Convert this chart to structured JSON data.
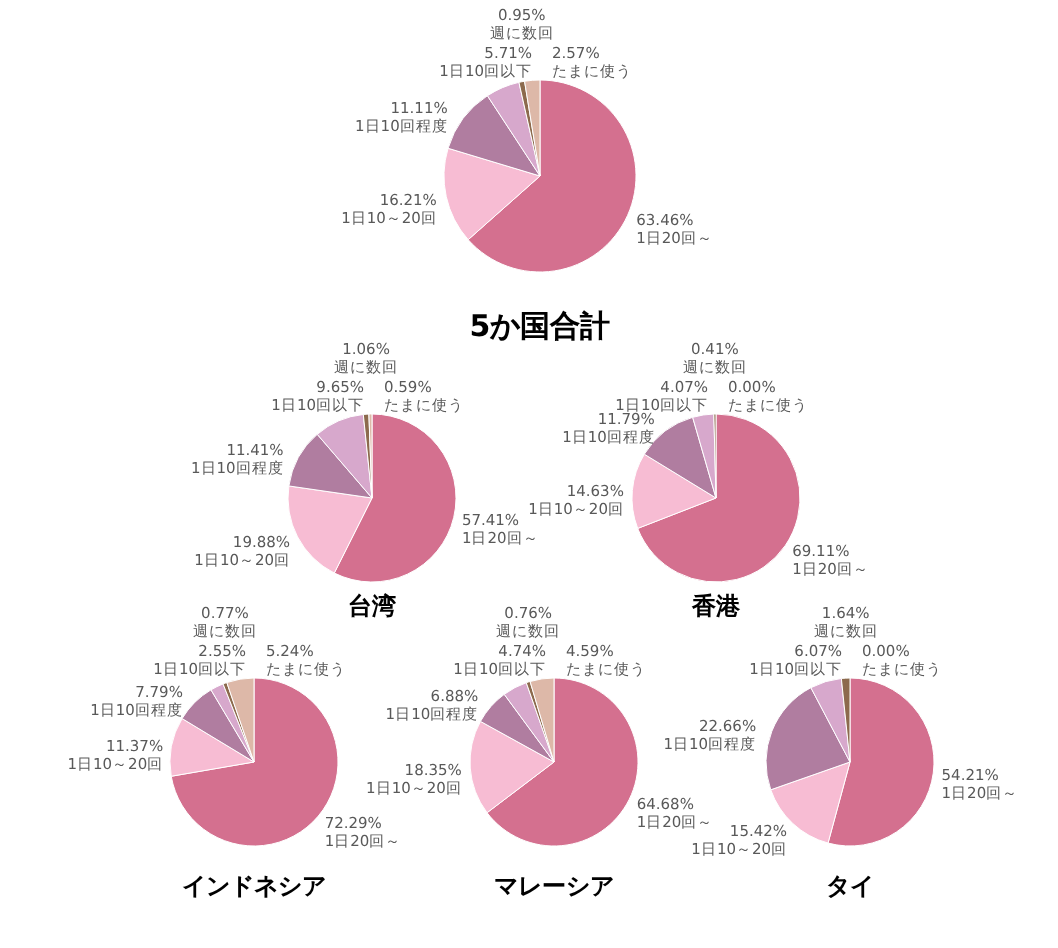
{
  "chart_data": [
    {
      "type": "pie",
      "title": "5か国合計",
      "categories": [
        "1日20回～",
        "1日10～20回",
        "1日10回程度",
        "1日10回以下",
        "週に数回",
        "たまに使う"
      ],
      "values": [
        63.46,
        16.21,
        11.11,
        5.71,
        0.95,
        2.57
      ],
      "value_labels": [
        "63.46%",
        "16.21%",
        "11.11%",
        "5.71%",
        "0.95%",
        "2.57%"
      ],
      "colors": [
        "#d4708f",
        "#f7bcd3",
        "#b07da0",
        "#d7a8cc",
        "#8c6a4d",
        "#ddb8a8"
      ]
    },
    {
      "type": "pie",
      "title": "台湾",
      "categories": [
        "1日20回～",
        "1日10～20回",
        "1日10回程度",
        "1日10回以下",
        "週に数回",
        "たまに使う"
      ],
      "values": [
        57.41,
        19.88,
        11.41,
        9.65,
        1.06,
        0.59
      ],
      "value_labels": [
        "57.41%",
        "19.88%",
        "11.41%",
        "9.65%",
        "1.06%",
        "0.59%"
      ],
      "colors": [
        "#d4708f",
        "#f7bcd3",
        "#b07da0",
        "#d7a8cc",
        "#8c6a4d",
        "#ddb8a8"
      ]
    },
    {
      "type": "pie",
      "title": "香港",
      "categories": [
        "1日20回～",
        "1日10～20回",
        "1日10回程度",
        "1日10回以下",
        "週に数回",
        "たまに使う"
      ],
      "values": [
        69.11,
        14.63,
        11.79,
        4.07,
        0.41,
        0.0
      ],
      "value_labels": [
        "69.11%",
        "14.63%",
        "11.79%",
        "4.07%",
        "0.41%",
        "0.00%"
      ],
      "colors": [
        "#d4708f",
        "#f7bcd3",
        "#b07da0",
        "#d7a8cc",
        "#8c6a4d",
        "#ddb8a8"
      ]
    },
    {
      "type": "pie",
      "title": "インドネシア",
      "categories": [
        "1日20回～",
        "1日10～20回",
        "1日10回程度",
        "1日10回以下",
        "週に数回",
        "たまに使う"
      ],
      "values": [
        72.29,
        11.37,
        7.79,
        2.55,
        0.77,
        5.24
      ],
      "value_labels": [
        "72.29%",
        "11.37%",
        "7.79%",
        "2.55%",
        "0.77%",
        "5.24%"
      ],
      "colors": [
        "#d4708f",
        "#f7bcd3",
        "#b07da0",
        "#d7a8cc",
        "#8c6a4d",
        "#ddb8a8"
      ]
    },
    {
      "type": "pie",
      "title": "マレーシア",
      "categories": [
        "1日20回～",
        "1日10～20回",
        "1日10回程度",
        "1日10回以下",
        "週に数回",
        "たまに使う"
      ],
      "values": [
        64.68,
        18.35,
        6.88,
        4.74,
        0.76,
        4.59
      ],
      "value_labels": [
        "64.68%",
        "18.35%",
        "6.88%",
        "4.74%",
        "0.76%",
        "4.59%"
      ],
      "colors": [
        "#d4708f",
        "#f7bcd3",
        "#b07da0",
        "#d7a8cc",
        "#8c6a4d",
        "#ddb8a8"
      ]
    },
    {
      "type": "pie",
      "title": "タイ",
      "categories": [
        "1日20回～",
        "1日10～20回",
        "1日10回程度",
        "1日10回以下",
        "週に数回",
        "たまに使う"
      ],
      "values": [
        54.21,
        15.42,
        22.66,
        6.07,
        1.64,
        0.0
      ],
      "value_labels": [
        "54.21%",
        "15.42%",
        "22.66%",
        "6.07%",
        "1.64%",
        "0.00%"
      ],
      "colors": [
        "#d4708f",
        "#f7bcd3",
        "#b07da0",
        "#d7a8cc",
        "#8c6a4d",
        "#ddb8a8"
      ]
    }
  ]
}
